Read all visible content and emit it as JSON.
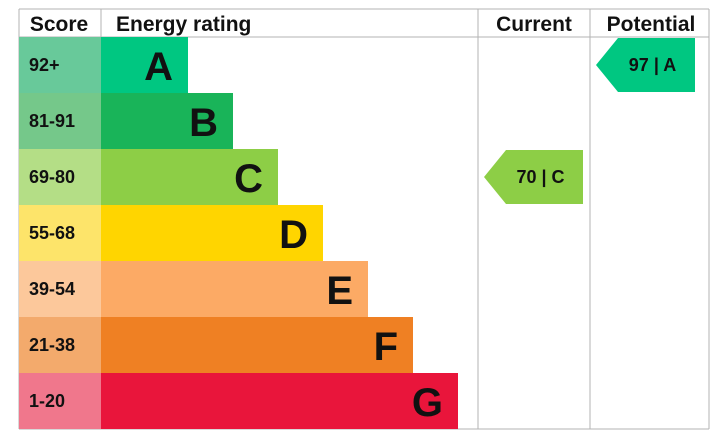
{
  "headers": {
    "score": "Score",
    "energy_rating": "Energy rating",
    "current": "Current",
    "potential": "Potential"
  },
  "chart_data": {
    "type": "bar",
    "categories": [
      "A",
      "B",
      "C",
      "D",
      "E",
      "F",
      "G"
    ],
    "bands": [
      {
        "letter": "A",
        "range": "92+",
        "band_color": "#00c781",
        "score_color": "#68c99a"
      },
      {
        "letter": "B",
        "range": "81-91",
        "band_color": "#19b459",
        "score_color": "#75c88a"
      },
      {
        "letter": "C",
        "range": "69-80",
        "band_color": "#8dce46",
        "score_color": "#b4de86"
      },
      {
        "letter": "D",
        "range": "55-68",
        "band_color": "#ffd500",
        "score_color": "#fde46a"
      },
      {
        "letter": "E",
        "range": "39-54",
        "band_color": "#fcaa65",
        "score_color": "#fcc89b"
      },
      {
        "letter": "F",
        "range": "21-38",
        "band_color": "#ef8023",
        "score_color": "#f3aa6c"
      },
      {
        "letter": "G",
        "range": "1-20",
        "band_color": "#e9153b",
        "score_color": "#f0778c"
      }
    ],
    "current": {
      "value": 70,
      "rating": "C",
      "label": "70 | C",
      "color": "#8dce46"
    },
    "potential": {
      "value": 97,
      "rating": "A",
      "label": "97 | A",
      "color": "#00c781"
    },
    "grid_color": "#b3b3b3"
  }
}
